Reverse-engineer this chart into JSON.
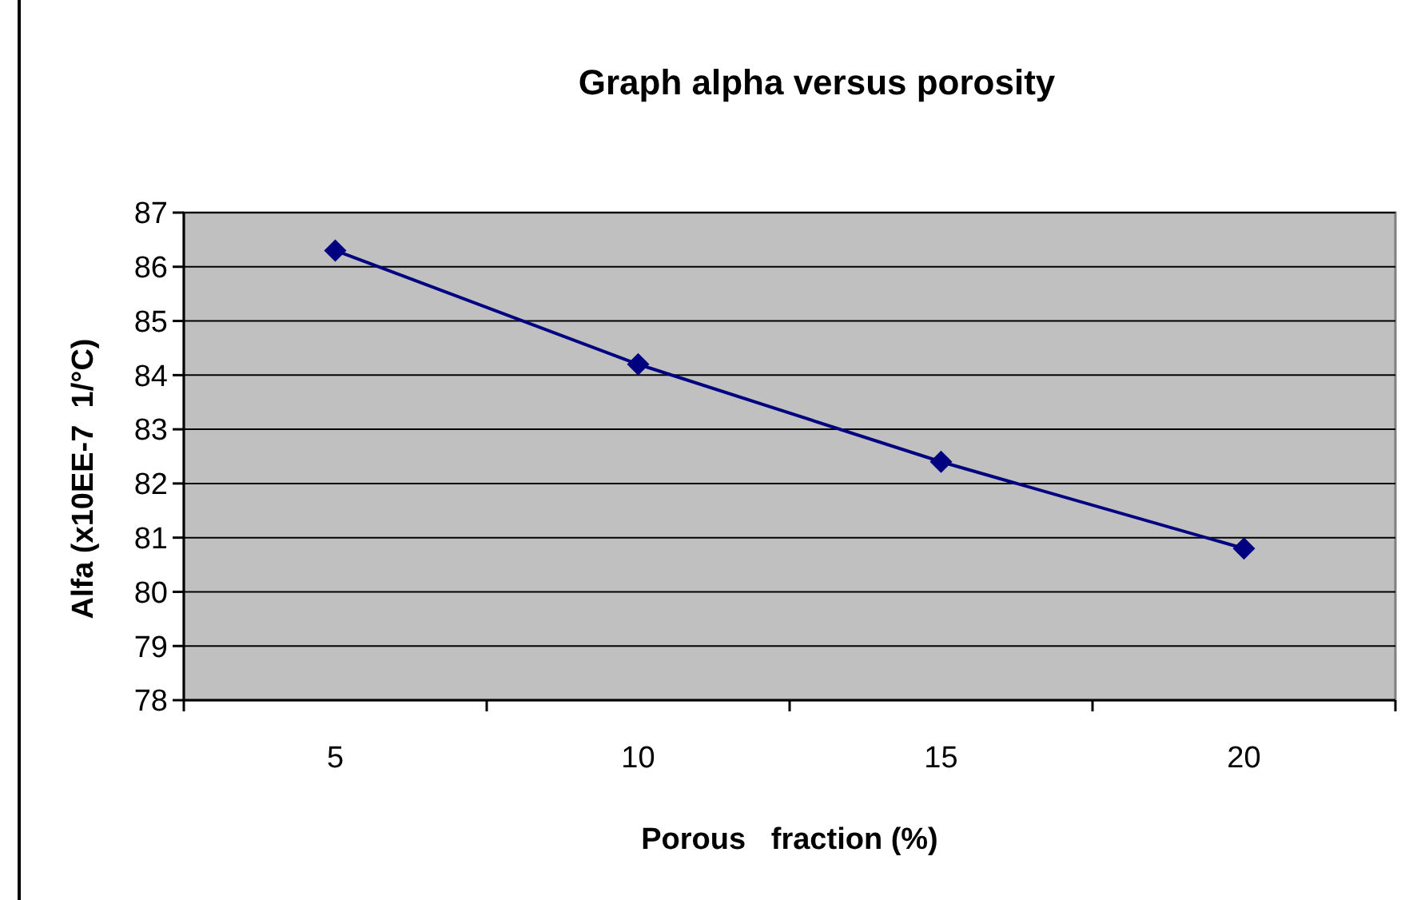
{
  "chart_data": {
    "type": "line",
    "title": "Graph alpha versus porosity",
    "xlabel": "Porous   fraction (%)",
    "ylabel": "Alfa (x10EE-7  1/°C)",
    "categories": [
      "5",
      "10",
      "15",
      "20"
    ],
    "series": [
      {
        "color": "#000080",
        "values": [
          86.3,
          84.2,
          82.4,
          80.8
        ]
      }
    ],
    "ylim": [
      78,
      87
    ],
    "yticks": [
      78,
      79,
      80,
      81,
      82,
      83,
      84,
      85,
      86,
      87
    ],
    "grid": "y",
    "marker": "diamond",
    "line_style": "solid"
  }
}
